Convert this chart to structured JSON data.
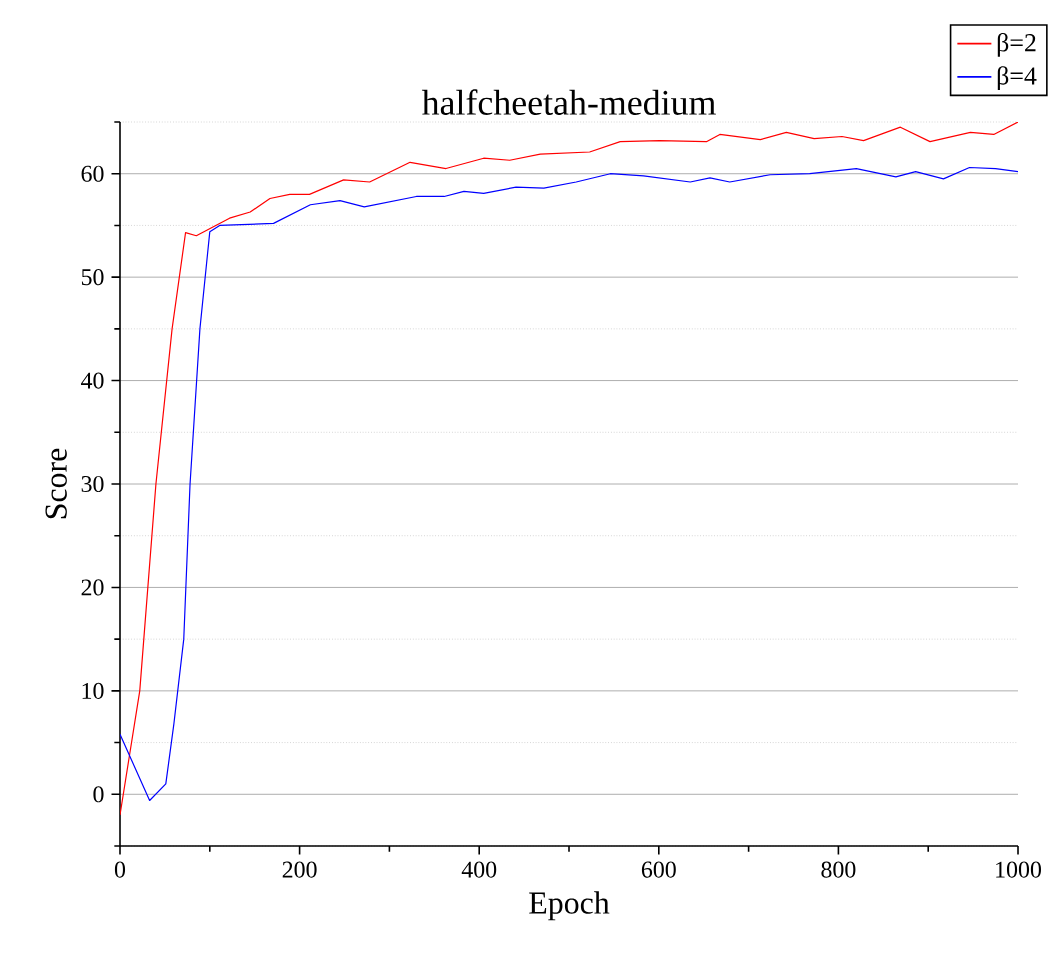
{
  "chart_data": {
    "type": "line",
    "title": "halfcheetah-medium",
    "xlabel": "Epoch",
    "ylabel": "Score",
    "xlim": [
      0,
      1000
    ],
    "ylim": [
      -5,
      65
    ],
    "xticks": [
      0,
      {
        "value": 100,
        "label": null
      },
      200,
      {
        "value": 300,
        "label": null
      },
      400,
      {
        "value": 500,
        "label": null
      },
      600,
      {
        "value": 700,
        "label": null
      },
      800,
      {
        "value": 900,
        "label": null
      },
      1000
    ],
    "yticks": [
      {
        "value": -5,
        "label": null
      },
      0,
      {
        "value": 5,
        "label": null
      },
      10,
      {
        "value": 15,
        "label": null
      },
      20,
      {
        "value": 25,
        "label": null
      },
      30,
      {
        "value": 35,
        "label": null
      },
      40,
      {
        "value": 45,
        "label": null
      },
      50,
      {
        "value": 55,
        "label": null
      },
      60,
      {
        "value": 65,
        "label": null
      }
    ],
    "grid": "y",
    "legend": "top right",
    "series": [
      {
        "name": "β=2",
        "color": "#ff0000",
        "x": [
          0,
          22,
          40,
          58,
          73,
          85,
          122,
          145,
          167,
          189,
          211,
          249,
          278,
          323,
          363,
          405,
          434,
          468,
          523,
          557,
          601,
          653,
          668,
          713,
          742,
          773,
          804,
          828,
          869,
          902,
          947,
          973,
          1000
        ],
        "values": [
          -2,
          10,
          30,
          45,
          54.3,
          54,
          55.7,
          56.3,
          57.6,
          58,
          58,
          59.4,
          59.2,
          61.1,
          60.5,
          61.5,
          61.3,
          61.9,
          62.1,
          63.1,
          63.2,
          63.1,
          63.8,
          63.3,
          64,
          63.4,
          63.6,
          63.2,
          64.5,
          63.1,
          64,
          63.8,
          65
        ]
      },
      {
        "name": "β=4",
        "color": "#0000ff",
        "x": [
          0,
          33,
          51,
          60,
          71,
          78,
          89,
          100,
          111,
          171,
          212,
          245,
          272,
          330,
          361,
          383,
          405,
          441,
          472,
          508,
          546,
          583,
          635,
          657,
          679,
          724,
          768,
          820,
          864,
          886,
          917,
          946,
          975,
          1000
        ],
        "values": [
          5.8,
          -0.6,
          1,
          6.8,
          15,
          30,
          45,
          54.4,
          55,
          55.2,
          57,
          57.4,
          56.8,
          57.8,
          57.8,
          58.3,
          58.1,
          58.7,
          58.6,
          59.2,
          60,
          59.8,
          59.2,
          59.6,
          59.2,
          59.9,
          60,
          60.5,
          59.7,
          60.2,
          59.5,
          60.6,
          60.5,
          60.2
        ]
      }
    ]
  }
}
